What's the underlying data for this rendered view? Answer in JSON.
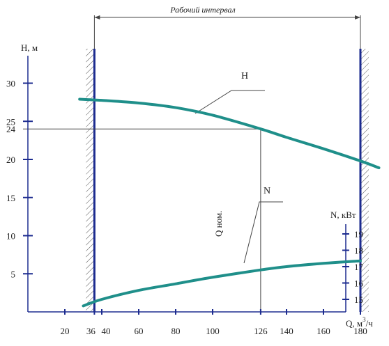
{
  "chart_data": {
    "type": "line",
    "title": "",
    "working_range": {
      "label": "Рабочий интервал",
      "x": [
        36,
        180
      ]
    },
    "x_axis": {
      "label": "Q, м",
      "unit_power": "3",
      "unit_tail": "/ч",
      "range": [
        0,
        200
      ],
      "ticks": [
        20,
        36,
        40,
        60,
        80,
        100,
        126,
        140,
        160,
        180
      ]
    },
    "y_axis_left": {
      "label": "H, м",
      "range": [
        0,
        35
      ],
      "ticks": [
        5,
        10,
        15,
        20,
        24,
        25,
        30
      ]
    },
    "y_axis_right": {
      "label": "N, кВт",
      "range": [
        14,
        20
      ],
      "ticks": [
        15,
        16,
        17,
        18,
        19
      ]
    },
    "nominal_point": {
      "label": "Q ном.",
      "x": 126,
      "y": 24
    },
    "series": [
      {
        "name": "H",
        "axis": "left",
        "color": "#1f8f8a",
        "x": [
          28,
          36,
          40,
          60,
          80,
          100,
          126,
          140,
          160,
          180,
          190
        ],
        "y": [
          27.9,
          27.8,
          27.75,
          27.4,
          26.8,
          25.8,
          24.0,
          22.9,
          21.4,
          19.8,
          18.9
        ]
      },
      {
        "name": "N",
        "axis": "right",
        "color": "#1f8f8a",
        "x": [
          30,
          40,
          60,
          80,
          100,
          126,
          140,
          160,
          180
        ],
        "y": [
          14.6,
          15.0,
          15.55,
          15.95,
          16.35,
          16.8,
          17.0,
          17.2,
          17.35
        ]
      }
    ],
    "colors": {
      "boundary_line": "#1c2b8f",
      "hatch": "#555555",
      "axis": "#1c2b8f",
      "guide": "#444444"
    }
  }
}
